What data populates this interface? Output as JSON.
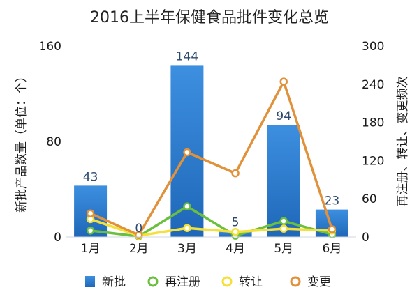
{
  "chart_data": {
    "type": "bar",
    "title": "2016上半年保健食品批件变化总览",
    "categories": [
      "1月",
      "2月",
      "3月",
      "4月",
      "5月",
      "6月"
    ],
    "series": [
      {
        "name": "新批",
        "kind": "bar",
        "axis": "left",
        "color": "#2f7fd0",
        "values": [
          43,
          0,
          144,
          5,
          94,
          23
        ]
      },
      {
        "name": "再注册",
        "kind": "line",
        "axis": "right",
        "color": "#6bbf3f",
        "values": [
          10,
          1,
          48,
          2,
          25,
          4
        ]
      },
      {
        "name": "转让",
        "kind": "line",
        "axis": "right",
        "color": "#f5e03a",
        "values": [
          28,
          2,
          14,
          8,
          13,
          10
        ]
      },
      {
        "name": "变更",
        "kind": "line",
        "axis": "right",
        "color": "#e0913a",
        "values": [
          37,
          3,
          133,
          100,
          244,
          12
        ]
      }
    ],
    "ylabel": "新批产品数量（单位：个）",
    "ylabel_right": "再注册、转让、变更频次",
    "ylim": [
      0,
      160
    ],
    "ylim_right": [
      0,
      300
    ],
    "yticks": [
      "0",
      "80",
      "160"
    ],
    "yticks_right": [
      "0",
      "60",
      "120",
      "180",
      "240",
      "300"
    ],
    "legend_position": "bottom",
    "grid": false
  }
}
